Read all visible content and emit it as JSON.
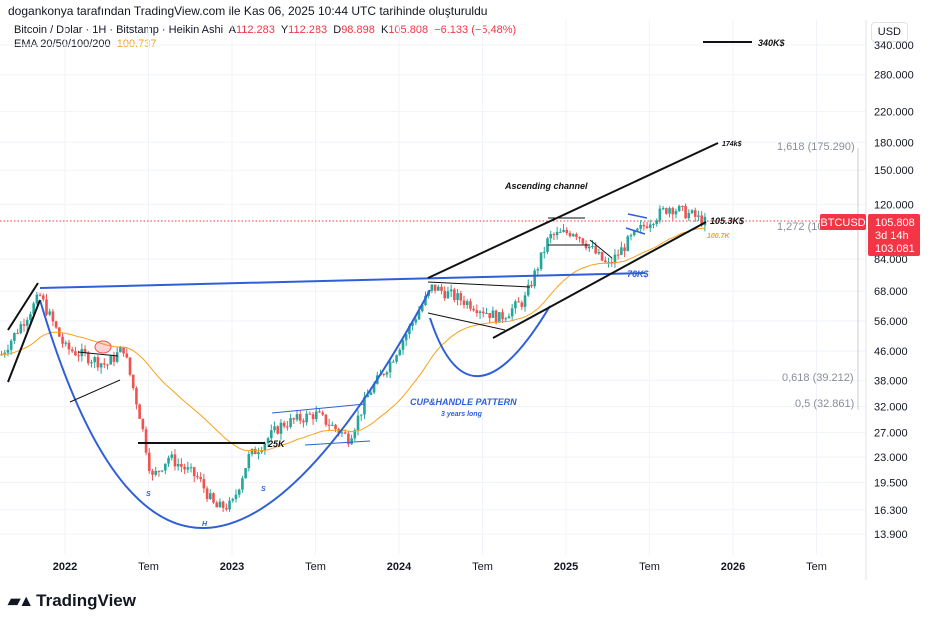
{
  "credit": "dogankonya tarafından TradingView.com ile Kas 06, 2025 10:44 UTC tarihinde oluşturuldu",
  "legend": {
    "symbol": "Bitcoin / Dolar · 1H · Bitstamp · Heikin Ashi",
    "open_label": "A",
    "open": "112.283",
    "high_label": "Y",
    "high": "112.283",
    "low_label": "D",
    "low": "98.898",
    "close_label": "K",
    "close": "105.808",
    "change": "−6.133 (−5,48%)",
    "ema_label": "EMA 20/50/100/200",
    "ema_value": "100.737"
  },
  "currency": "USD",
  "colors": {
    "up": "#26a69a",
    "down": "#ef5350",
    "ema": "#f7a21b",
    "drawing_blue": "#2f5fd8",
    "price_tag": "#f23645"
  },
  "price_tag": {
    "symbol": "BTCUSD",
    "price": "105.808",
    "countdown": "3d 14h",
    "second": "103.081"
  },
  "fib_levels": [
    "1,618 (175.290)",
    "1,272 (10",
    "0,618 (39.212)",
    "0,5 (32.861)"
  ],
  "annotations": {
    "target": "340K$",
    "top": "174k$",
    "current": "105.3K$",
    "ema": "100.7K",
    "support": "76K$",
    "channel": "Ascending channel",
    "pattern": "CUP&HANDLE PATTERN",
    "pattern_sub": "3 years long",
    "neck": "25K",
    "s1": "S",
    "h": "H",
    "s2": "S"
  },
  "logo": "TradingView",
  "chart_data": {
    "type": "candlestick",
    "scale": "log",
    "y_ticks": [
      "340.000",
      "280.000",
      "220.000",
      "180.000",
      "150.000",
      "120.000",
      "84.000",
      "68.000",
      "56.000",
      "46.000",
      "38.000",
      "32.000",
      "27.000",
      "23.000",
      "19.500",
      "16.300",
      "13.900"
    ],
    "x_ticks": [
      "2022",
      "Tem",
      "2023",
      "Tem",
      "2024",
      "Tem",
      "2025",
      "Tem",
      "2026",
      "Tem"
    ],
    "ylim": [
      13000,
      380000
    ],
    "approx_close_path": [
      [
        2021.62,
        45000
      ],
      [
        2021.85,
        66000
      ],
      [
        2022.0,
        47000
      ],
      [
        2022.25,
        42000
      ],
      [
        2022.35,
        47000
      ],
      [
        2022.45,
        30000
      ],
      [
        2022.52,
        20000
      ],
      [
        2022.62,
        23000
      ],
      [
        2022.8,
        20000
      ],
      [
        2022.9,
        16500
      ],
      [
        2023.0,
        16800
      ],
      [
        2023.1,
        23000
      ],
      [
        2023.3,
        28500
      ],
      [
        2023.5,
        30500
      ],
      [
        2023.7,
        26000
      ],
      [
        2023.82,
        35000
      ],
      [
        2023.95,
        43000
      ],
      [
        2024.2,
        70000
      ],
      [
        2024.45,
        62000
      ],
      [
        2024.6,
        57000
      ],
      [
        2024.75,
        64000
      ],
      [
        2024.9,
        97000
      ],
      [
        2025.05,
        101000
      ],
      [
        2025.25,
        80000
      ],
      [
        2025.38,
        95000
      ],
      [
        2025.5,
        108000
      ],
      [
        2025.62,
        118000
      ],
      [
        2025.75,
        112000
      ],
      [
        2025.85,
        105808
      ]
    ],
    "grid": true
  }
}
